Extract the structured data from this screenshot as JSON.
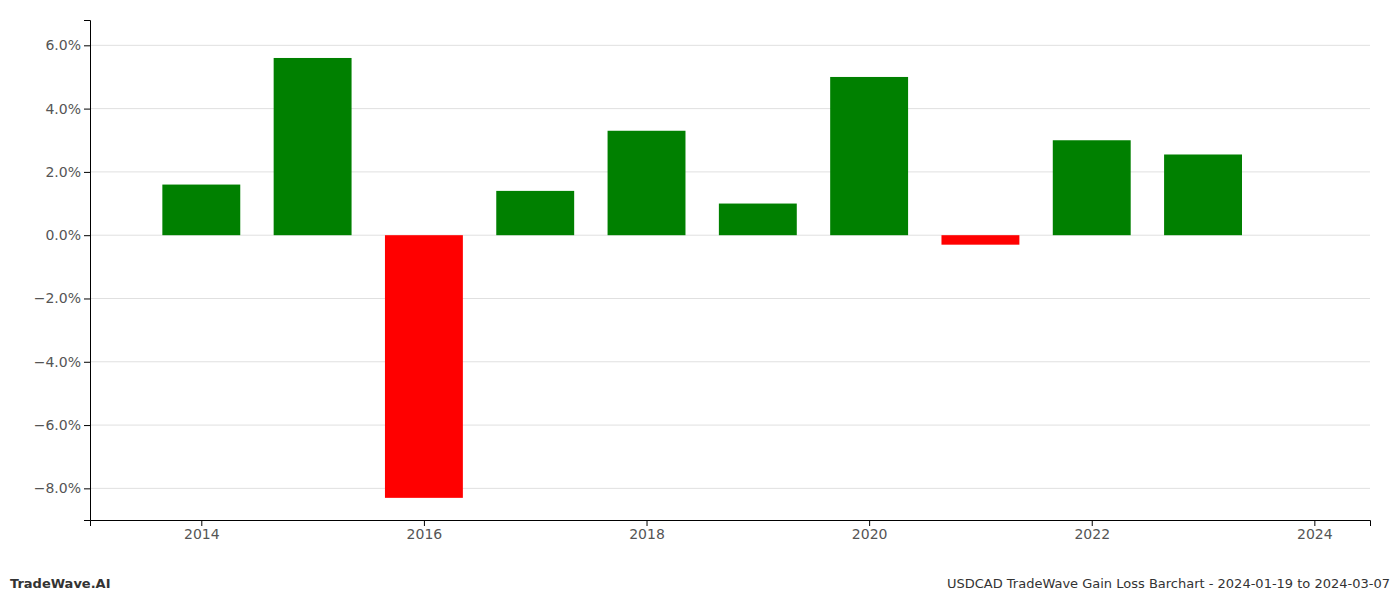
{
  "chart_data": {
    "type": "bar",
    "x": [
      2014,
      2015,
      2016,
      2017,
      2018,
      2019,
      2020,
      2021,
      2022,
      2023
    ],
    "values": [
      0.016,
      0.056,
      -0.083,
      0.014,
      0.033,
      0.01,
      0.05,
      -0.003,
      0.03,
      0.0255
    ],
    "colors": [
      "#008000",
      "#008000",
      "#ff0000",
      "#008000",
      "#008000",
      "#008000",
      "#008000",
      "#ff0000",
      "#008000",
      "#008000"
    ],
    "xlim": [
      2013.0,
      2024.5
    ],
    "xticks": [
      2014,
      2016,
      2018,
      2020,
      2022,
      2024
    ],
    "ylim": [
      -0.09,
      0.068
    ],
    "yticks": [
      {
        "value": -0.08,
        "label": "−8.0%"
      },
      {
        "value": -0.06,
        "label": "−6.0%"
      },
      {
        "value": -0.04,
        "label": "−4.0%"
      },
      {
        "value": -0.02,
        "label": "−2.0%"
      },
      {
        "value": 0.0,
        "label": "0.0%"
      },
      {
        "value": 0.02,
        "label": "2.0%"
      },
      {
        "value": 0.04,
        "label": "4.0%"
      },
      {
        "value": 0.06,
        "label": "6.0%"
      }
    ],
    "grid": true,
    "annotations": [
      "TradeWave.AI",
      "USDCAD TradeWave Gain Loss Barchart - 2024-01-19 to 2024-03-07"
    ]
  }
}
